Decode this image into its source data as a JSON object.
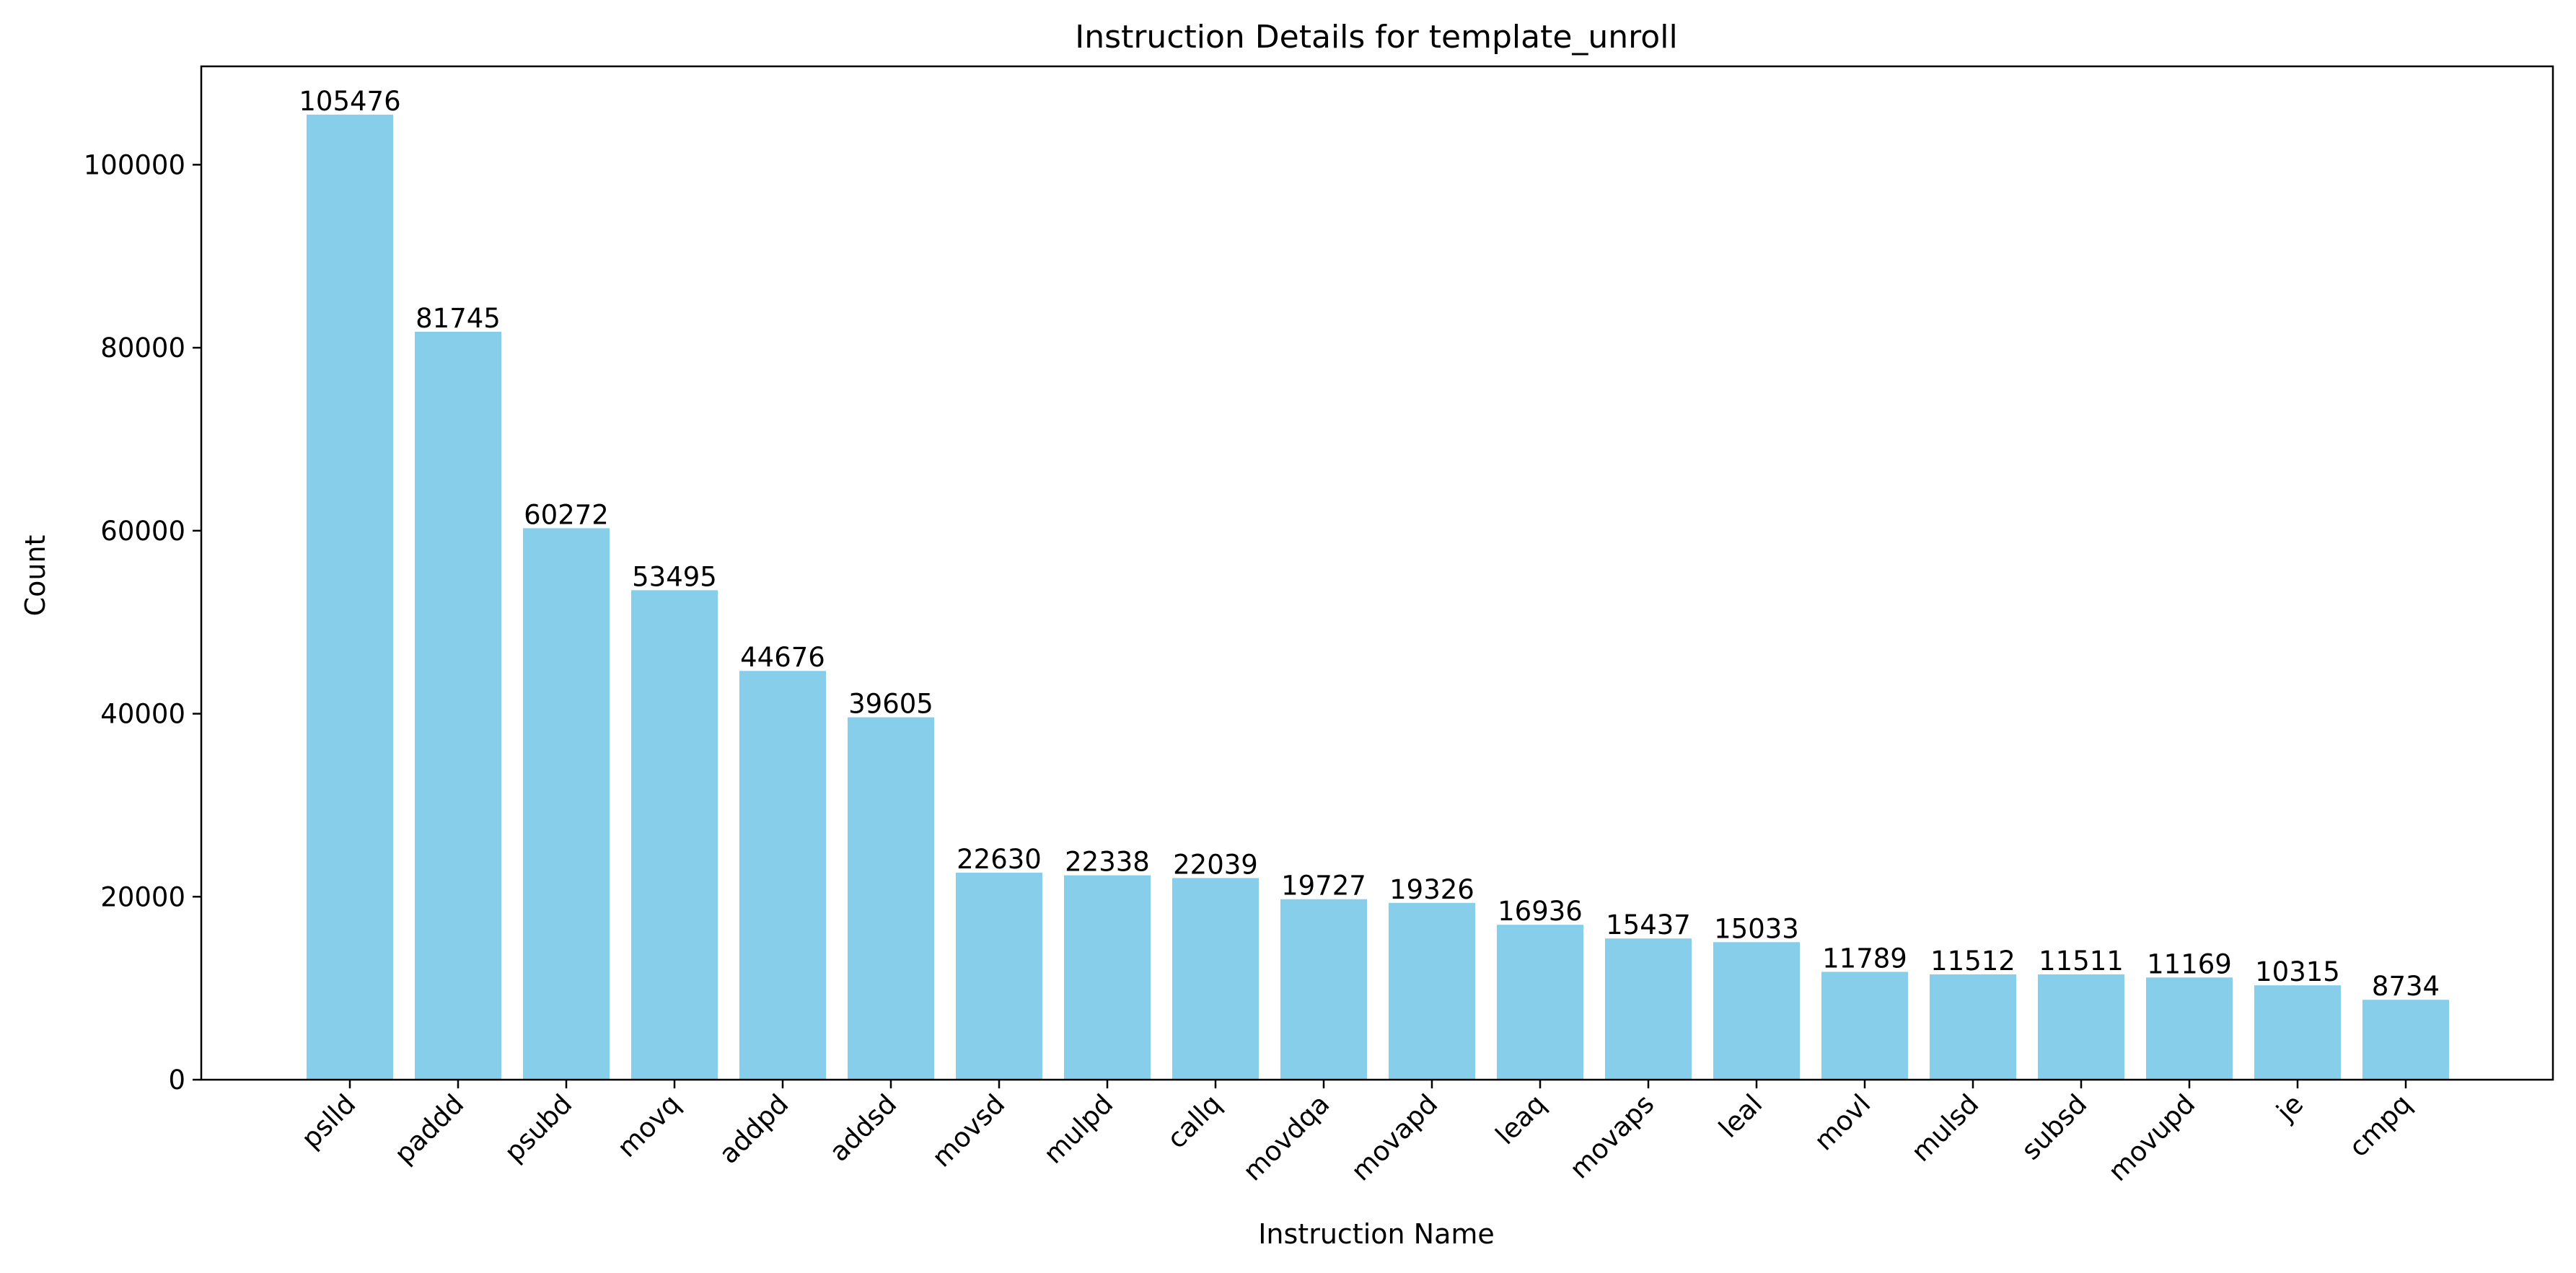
{
  "chart_data": {
    "type": "bar",
    "title": "Instruction Details for template_unroll",
    "xlabel": "Instruction Name",
    "ylabel": "Count",
    "categories": [
      "pslld",
      "paddd",
      "psubd",
      "movq",
      "addpd",
      "addsd",
      "movsd",
      "mulpd",
      "callq",
      "movdqa",
      "movapd",
      "leaq",
      "movaps",
      "leal",
      "movl",
      "mulsd",
      "subsd",
      "movupd",
      "je",
      "cmpq"
    ],
    "values": [
      105476,
      81745,
      60272,
      53495,
      44676,
      39605,
      22630,
      22338,
      22039,
      19727,
      19326,
      16936,
      15437,
      15033,
      11789,
      11512,
      11511,
      11169,
      10315,
      8734
    ],
    "data_labels": [
      "105476",
      "81745",
      "60272",
      "53495",
      "44676",
      "39605",
      "22630",
      "22338",
      "22039",
      "19727",
      "19326",
      "16936",
      "15437",
      "15033",
      "11789",
      "11512",
      "11511",
      "11169",
      "10315",
      "8734"
    ],
    "yticks": [
      0,
      20000,
      40000,
      60000,
      80000,
      100000
    ],
    "ytick_labels": [
      "0",
      "20000",
      "40000",
      "60000",
      "80000",
      "100000"
    ],
    "ylim": [
      0,
      110750
    ],
    "bar_color": "#87ceeb",
    "grid": false,
    "legend": "none"
  }
}
